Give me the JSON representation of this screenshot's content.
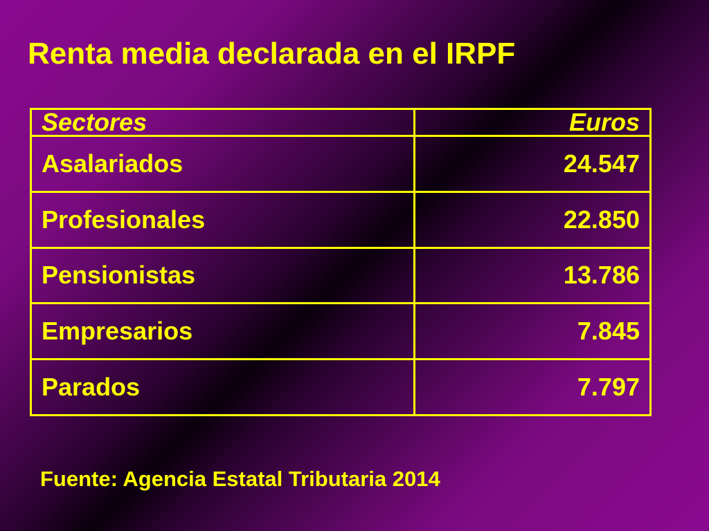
{
  "title": "Renta media declarada en el IRPF",
  "table": {
    "headers": [
      "Sectores",
      "Euros"
    ],
    "rows": [
      [
        "Asalariados",
        "24.547"
      ],
      [
        "Profesionales",
        "22.850"
      ],
      [
        "Pensionistas",
        "13.786"
      ],
      [
        "Empresarios",
        "7.845"
      ],
      [
        "Parados",
        "7.797"
      ]
    ]
  },
  "source": "Fuente: Agencia Estatal Tributaria 2014",
  "colors": {
    "text": "#ffff00",
    "background_edge": "#8a0a8f",
    "background_center": "#0a000c"
  }
}
